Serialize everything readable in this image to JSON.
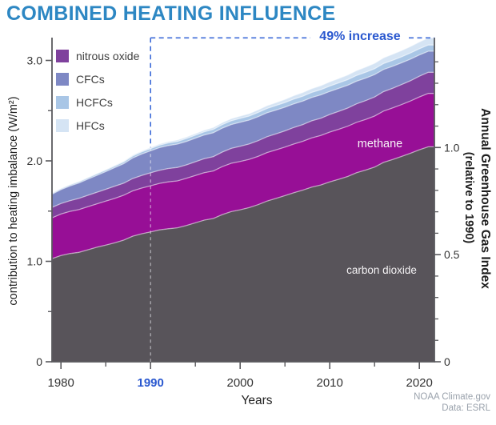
{
  "title": "COMBINED HEATING INFLUENCE",
  "annotation": {
    "text": "49% increase",
    "from_year": "1990"
  },
  "legend": [
    {
      "label": "nitrous oxide",
      "color": "#7f419d"
    },
    {
      "label": "CFCs",
      "color": "#7e88c4"
    },
    {
      "label": "HCFCs",
      "color": "#a9c6e6"
    },
    {
      "label": "HFCs",
      "color": "#d5e4f4"
    }
  ],
  "inline_labels": {
    "methane": "methane",
    "carbon_dioxide": "carbon dioxide"
  },
  "axes": {
    "left": {
      "title": "contribution to heating imbalance (W/m²)",
      "ticks": [
        0,
        1.0,
        2.0,
        3.0
      ],
      "tick_labels": [
        "0",
        "1.0",
        "2.0",
        "3.0"
      ],
      "minor_ticks": [
        0.5,
        1.5,
        2.5
      ],
      "range": [
        0,
        3.23
      ]
    },
    "right": {
      "title_line1": "Annual Greenhouse Gas Index",
      "title_line2": "(relative to 1990)",
      "ticks": [
        0,
        0.5,
        1.0
      ],
      "tick_labels": [
        "0",
        "0.5",
        "1.0"
      ],
      "minor_step": 0.1,
      "range": [
        0,
        1.51
      ]
    },
    "x": {
      "title": "Years",
      "ticks": [
        1980,
        1990,
        2000,
        2010,
        2020
      ],
      "tick_labels": [
        "1980",
        "1990",
        "2000",
        "2010",
        "2020"
      ],
      "minor_ticks": [
        1985,
        1995,
        2005,
        2015
      ],
      "highlighted_tick": "1990"
    }
  },
  "credits": {
    "line1": "NOAA Climate.gov",
    "line2": "Data: ESRL"
  },
  "colors": {
    "title": "#2d87c3",
    "annotation_blue": "#2a58cf",
    "dash_blue": "#3d6bd8",
    "axis_text": "#333333",
    "axis_line": "#5a5a5e",
    "credits": "#9aa2ac",
    "band_edge": "rgba(255,255,255,0.5)"
  },
  "chart_data": {
    "type": "area",
    "stacked": true,
    "title": "COMBINED HEATING INFLUENCE",
    "xlabel": "Years",
    "ylabel": "contribution to heating imbalance (W/m²)",
    "ylabel_right": "Annual Greenhouse Gas Index (relative to 1990)",
    "ylim": [
      0,
      3.23
    ],
    "xlim": [
      1979,
      2021
    ],
    "grid": false,
    "legend_position": "top-left",
    "annotation": "49% increase vs 1990",
    "x": [
      1979,
      1980,
      1981,
      1982,
      1983,
      1984,
      1985,
      1986,
      1987,
      1988,
      1989,
      1990,
      1991,
      1992,
      1993,
      1994,
      1995,
      1996,
      1997,
      1998,
      1999,
      2000,
      2001,
      2002,
      2003,
      2004,
      2005,
      2006,
      2007,
      2008,
      2009,
      2010,
      2011,
      2012,
      2013,
      2014,
      2015,
      2016,
      2017,
      2018,
      2019,
      2020,
      2021
    ],
    "series": [
      {
        "name": "carbon dioxide",
        "color": "#58545a",
        "values": [
          1.027,
          1.058,
          1.077,
          1.089,
          1.115,
          1.14,
          1.162,
          1.184,
          1.211,
          1.25,
          1.274,
          1.293,
          1.313,
          1.324,
          1.334,
          1.356,
          1.383,
          1.41,
          1.426,
          1.465,
          1.495,
          1.513,
          1.535,
          1.564,
          1.6,
          1.626,
          1.654,
          1.684,
          1.709,
          1.739,
          1.76,
          1.791,
          1.817,
          1.845,
          1.882,
          1.908,
          1.938,
          1.985,
          2.013,
          2.044,
          2.076,
          2.111,
          2.14
        ]
      },
      {
        "name": "methane",
        "color": "#970f96",
        "values": [
          0.406,
          0.413,
          0.42,
          0.426,
          0.429,
          0.432,
          0.437,
          0.442,
          0.447,
          0.451,
          0.455,
          0.459,
          0.463,
          0.467,
          0.467,
          0.47,
          0.472,
          0.473,
          0.474,
          0.478,
          0.481,
          0.481,
          0.48,
          0.481,
          0.483,
          0.483,
          0.483,
          0.484,
          0.486,
          0.49,
          0.493,
          0.496,
          0.498,
          0.5,
          0.502,
          0.505,
          0.508,
          0.511,
          0.514,
          0.516,
          0.52,
          0.526,
          0.532
        ]
      },
      {
        "name": "nitrous oxide",
        "color": "#7f419d",
        "values": [
          0.104,
          0.104,
          0.107,
          0.111,
          0.113,
          0.116,
          0.118,
          0.122,
          0.12,
          0.123,
          0.126,
          0.129,
          0.131,
          0.133,
          0.134,
          0.134,
          0.136,
          0.139,
          0.142,
          0.145,
          0.148,
          0.151,
          0.153,
          0.156,
          0.158,
          0.16,
          0.162,
          0.165,
          0.167,
          0.17,
          0.172,
          0.175,
          0.178,
          0.181,
          0.184,
          0.187,
          0.19,
          0.193,
          0.195,
          0.199,
          0.202,
          0.206,
          0.21
        ]
      },
      {
        "name": "CFCs",
        "color": "#7e88c4",
        "values": [
          0.131,
          0.139,
          0.146,
          0.154,
          0.161,
          0.168,
          0.176,
          0.185,
          0.194,
          0.205,
          0.213,
          0.219,
          0.225,
          0.229,
          0.232,
          0.234,
          0.235,
          0.236,
          0.238,
          0.238,
          0.238,
          0.239,
          0.238,
          0.239,
          0.238,
          0.237,
          0.236,
          0.235,
          0.234,
          0.232,
          0.232,
          0.23,
          0.229,
          0.227,
          0.226,
          0.224,
          0.223,
          0.221,
          0.219,
          0.217,
          0.215,
          0.212,
          0.21
        ]
      },
      {
        "name": "HCFCs",
        "color": "#a9c6e6",
        "values": [
          0.009,
          0.01,
          0.011,
          0.012,
          0.013,
          0.014,
          0.015,
          0.016,
          0.018,
          0.019,
          0.021,
          0.022,
          0.024,
          0.026,
          0.027,
          0.029,
          0.03,
          0.032,
          0.034,
          0.035,
          0.037,
          0.039,
          0.04,
          0.042,
          0.043,
          0.045,
          0.046,
          0.048,
          0.049,
          0.051,
          0.052,
          0.053,
          0.055,
          0.056,
          0.057,
          0.058,
          0.058,
          0.059,
          0.06,
          0.06,
          0.061,
          0.061,
          0.062
        ]
      },
      {
        "name": "HFCs",
        "color": "#d5e4f4",
        "values": [
          0.004,
          0.004,
          0.005,
          0.005,
          0.006,
          0.006,
          0.007,
          0.007,
          0.008,
          0.009,
          0.01,
          0.011,
          0.012,
          0.013,
          0.014,
          0.015,
          0.016,
          0.017,
          0.018,
          0.02,
          0.021,
          0.023,
          0.024,
          0.026,
          0.028,
          0.03,
          0.032,
          0.034,
          0.036,
          0.038,
          0.04,
          0.042,
          0.044,
          0.047,
          0.049,
          0.052,
          0.054,
          0.057,
          0.06,
          0.062,
          0.065,
          0.068,
          0.071
        ]
      }
    ]
  }
}
